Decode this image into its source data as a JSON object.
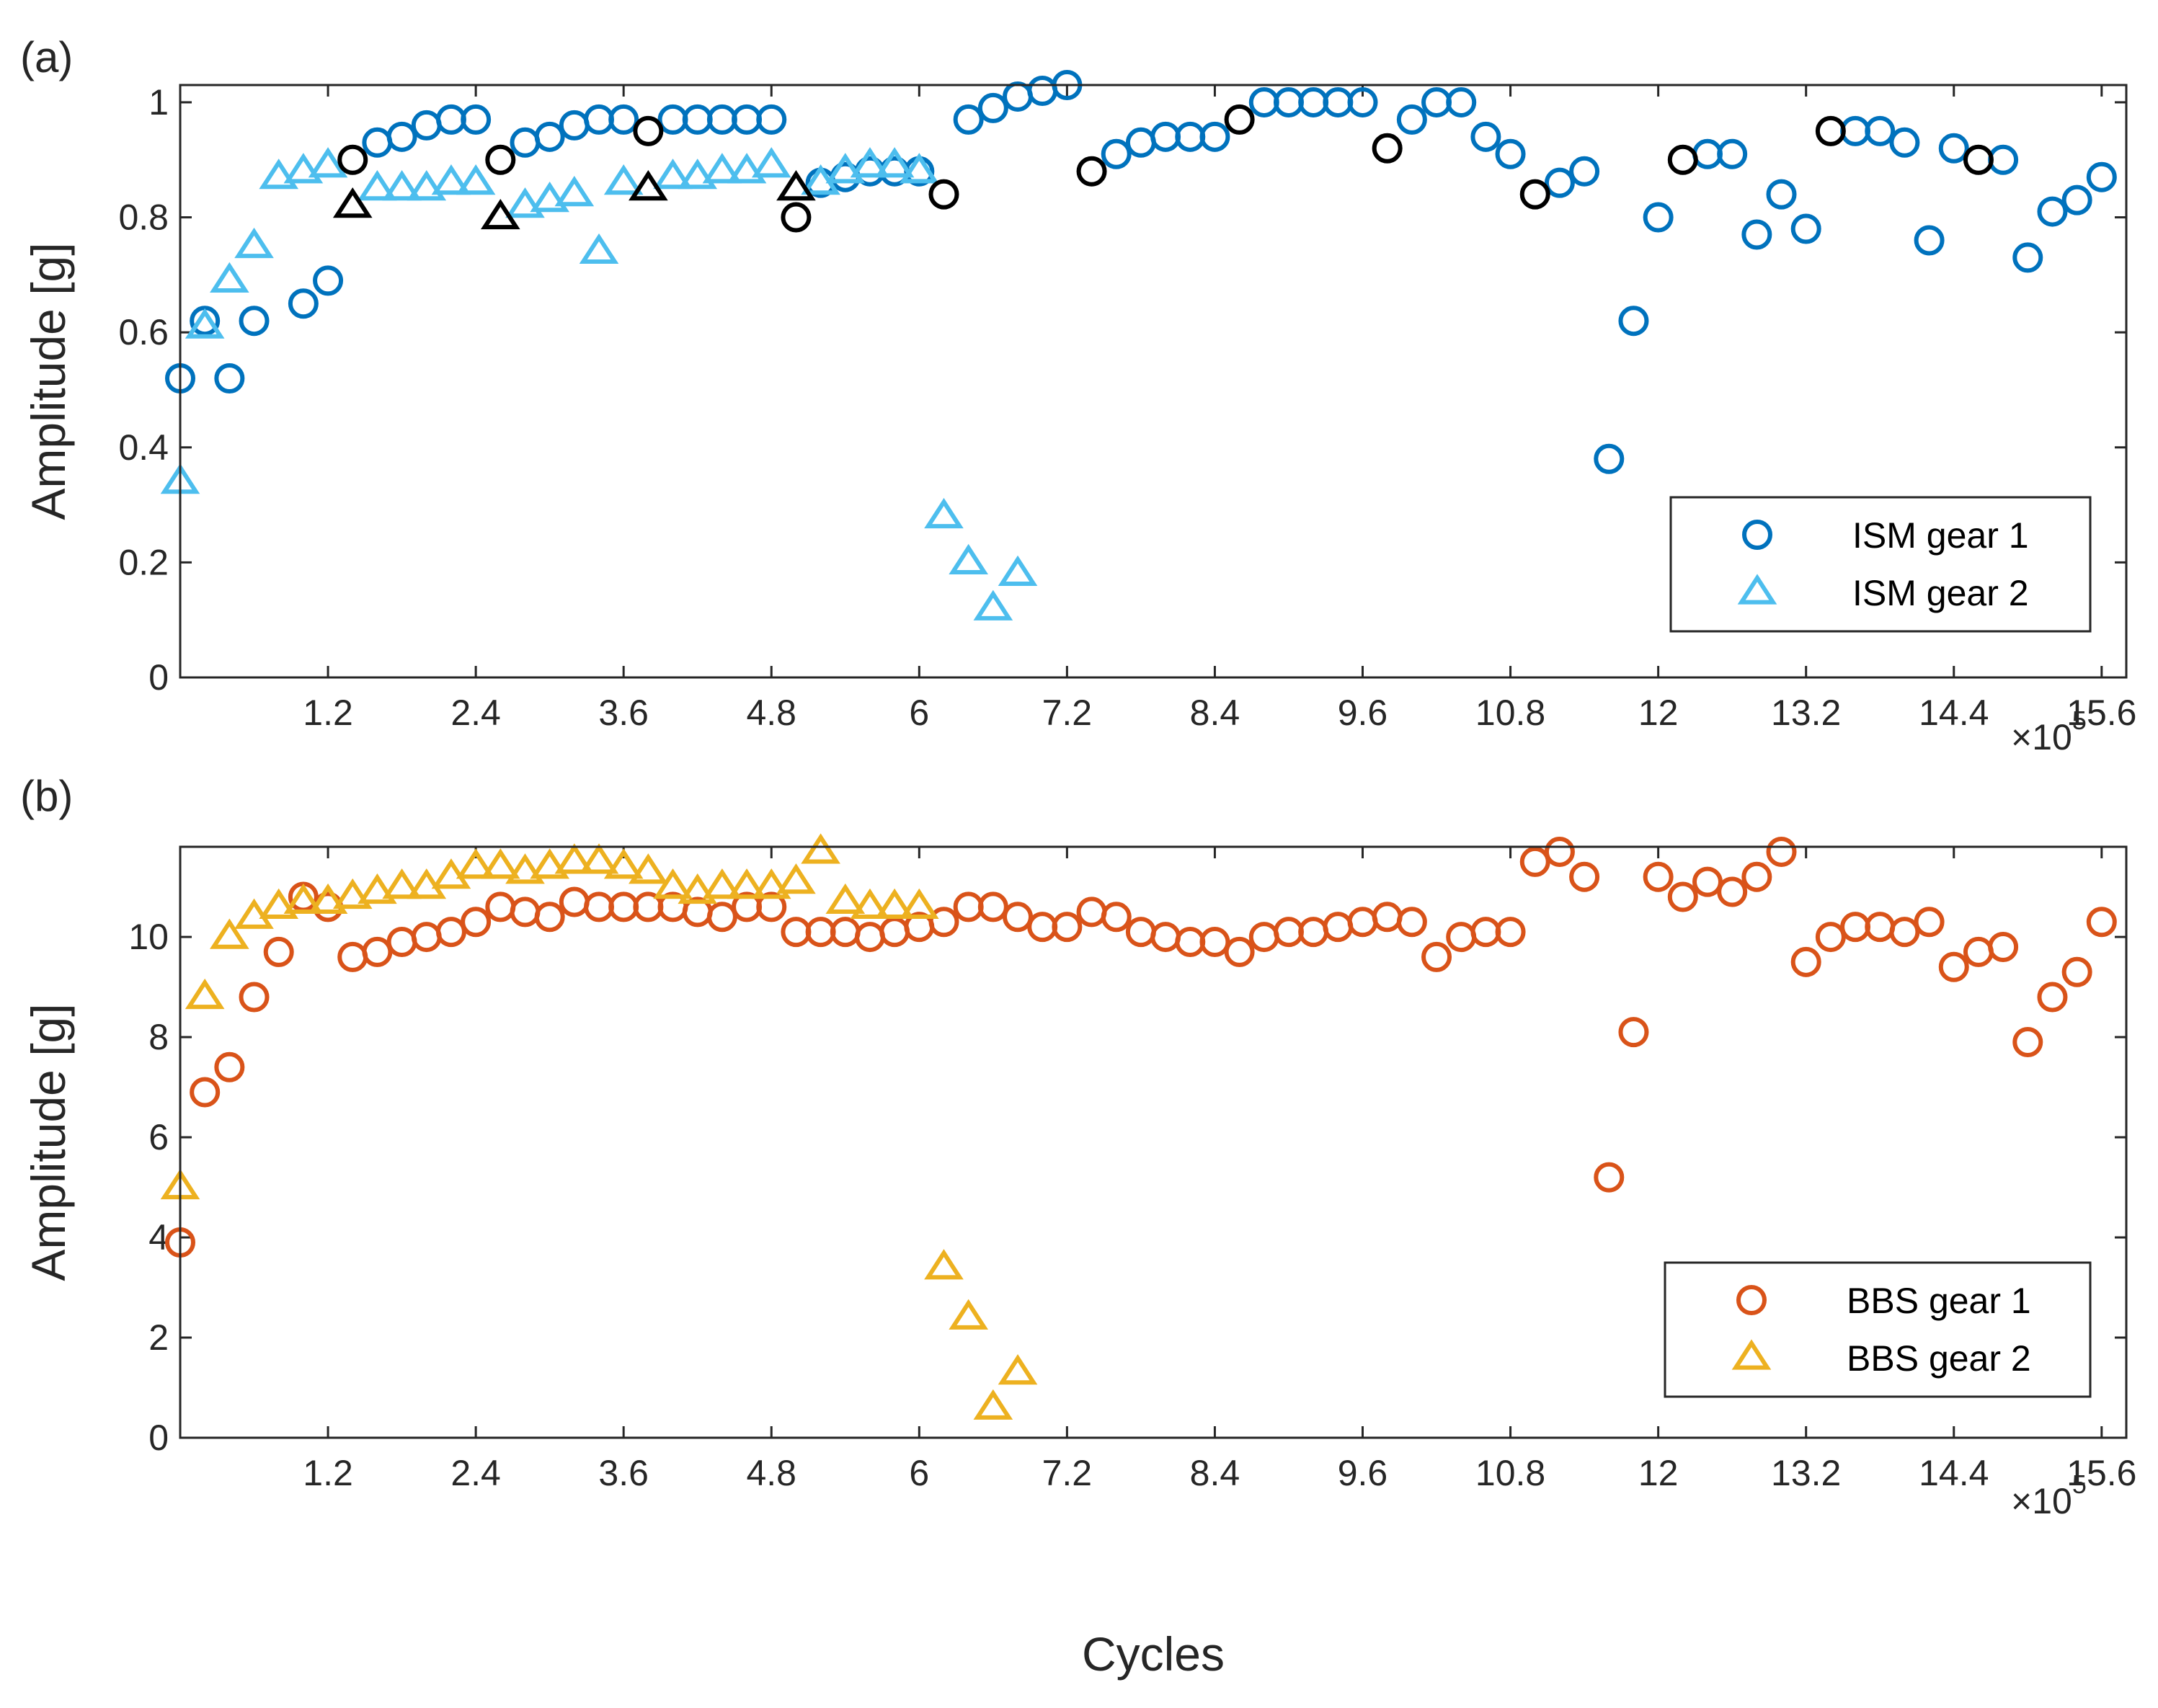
{
  "chart_data": [
    {
      "type": "scatter",
      "panel_label": "(a)",
      "ylabel": "Amplitude [g]",
      "xlabel": "",
      "xlim": [
        0,
        15.8
      ],
      "ylim": [
        0,
        1.03
      ],
      "x_multiplier_label": "×10",
      "x_multiplier_exp": "5",
      "xticks": [
        1.2,
        2.4,
        3.6,
        4.8,
        6,
        7.2,
        8.4,
        9.6,
        10.8,
        12,
        13.2,
        14.4,
        15.6
      ],
      "xtick_labels": [
        "1.2",
        "2.4",
        "3.6",
        "4.8",
        "6",
        "7.2",
        "8.4",
        "9.6",
        "10.8",
        "12",
        "13.2",
        "14.4",
        "15.6"
      ],
      "yticks": [
        0,
        0.2,
        0.4,
        0.6,
        0.8,
        1
      ],
      "ytick_labels": [
        "0",
        "0.2",
        "0.4",
        "0.6",
        "0.8",
        "1"
      ],
      "legend_position": "bottom-right",
      "series": [
        {
          "name": "ISM gear 1",
          "marker": "circle",
          "color": "#0072BD",
          "in_legend": true,
          "points": [
            [
              0,
              0.52
            ],
            [
              0.2,
              0.62
            ],
            [
              0.4,
              0.52
            ],
            [
              0.6,
              0.62
            ],
            [
              1.0,
              0.65
            ],
            [
              1.2,
              0.69
            ],
            [
              1.6,
              0.93
            ],
            [
              1.8,
              0.94
            ],
            [
              2.0,
              0.96
            ],
            [
              2.2,
              0.97
            ],
            [
              2.4,
              0.97
            ],
            [
              2.8,
              0.93
            ],
            [
              3.0,
              0.94
            ],
            [
              3.2,
              0.96
            ],
            [
              3.4,
              0.97
            ],
            [
              3.6,
              0.97
            ],
            [
              4.0,
              0.97
            ],
            [
              4.2,
              0.97
            ],
            [
              4.4,
              0.97
            ],
            [
              4.6,
              0.97
            ],
            [
              4.8,
              0.97
            ],
            [
              5.2,
              0.86
            ],
            [
              5.4,
              0.87
            ],
            [
              5.6,
              0.88
            ],
            [
              5.8,
              0.88
            ],
            [
              6.0,
              0.88
            ],
            [
              6.4,
              0.97
            ],
            [
              6.6,
              0.99
            ],
            [
              6.8,
              1.01
            ],
            [
              7.0,
              1.02
            ],
            [
              7.2,
              1.03
            ],
            [
              7.6,
              0.91
            ],
            [
              7.8,
              0.93
            ],
            [
              8.0,
              0.94
            ],
            [
              8.2,
              0.94
            ],
            [
              8.4,
              0.94
            ],
            [
              8.8,
              1.0
            ],
            [
              9.0,
              1.0
            ],
            [
              9.2,
              1.0
            ],
            [
              9.4,
              1.0
            ],
            [
              9.6,
              1.0
            ],
            [
              10.0,
              0.97
            ],
            [
              10.2,
              1.0
            ],
            [
              10.4,
              1.0
            ],
            [
              10.6,
              0.94
            ],
            [
              10.8,
              0.91
            ],
            [
              11.2,
              0.86
            ],
            [
              11.4,
              0.88
            ],
            [
              11.6,
              0.38
            ],
            [
              11.8,
              0.62
            ],
            [
              12.0,
              0.8
            ],
            [
              12.4,
              0.91
            ],
            [
              12.6,
              0.91
            ],
            [
              12.8,
              0.77
            ],
            [
              13.0,
              0.84
            ],
            [
              13.2,
              0.78
            ],
            [
              13.6,
              0.95
            ],
            [
              13.8,
              0.95
            ],
            [
              14.0,
              0.93
            ],
            [
              14.2,
              0.76
            ],
            [
              14.4,
              0.92
            ],
            [
              14.8,
              0.9
            ],
            [
              15.0,
              0.73
            ],
            [
              15.2,
              0.81
            ],
            [
              15.4,
              0.83
            ],
            [
              15.6,
              0.87
            ]
          ]
        },
        {
          "name": "ISM gear 2",
          "marker": "triangle",
          "color": "#4DBEEE",
          "in_legend": true,
          "points": [
            [
              0,
              0.34
            ],
            [
              0.2,
              0.61
            ],
            [
              0.4,
              0.69
            ],
            [
              0.6,
              0.75
            ],
            [
              0.8,
              0.87
            ],
            [
              1.0,
              0.88
            ],
            [
              1.2,
              0.89
            ],
            [
              1.6,
              0.85
            ],
            [
              1.8,
              0.85
            ],
            [
              2.0,
              0.85
            ],
            [
              2.2,
              0.86
            ],
            [
              2.4,
              0.86
            ],
            [
              2.8,
              0.82
            ],
            [
              3.0,
              0.83
            ],
            [
              3.2,
              0.84
            ],
            [
              3.4,
              0.74
            ],
            [
              3.6,
              0.86
            ],
            [
              4.0,
              0.87
            ],
            [
              4.2,
              0.87
            ],
            [
              4.4,
              0.88
            ],
            [
              4.6,
              0.88
            ],
            [
              4.8,
              0.89
            ],
            [
              5.2,
              0.86
            ],
            [
              5.4,
              0.88
            ],
            [
              5.6,
              0.89
            ],
            [
              5.8,
              0.89
            ],
            [
              6.0,
              0.88
            ],
            [
              6.2,
              0.28
            ],
            [
              6.4,
              0.2
            ],
            [
              6.6,
              0.12
            ],
            [
              6.8,
              0.18
            ]
          ]
        },
        {
          "name": "ISM gear 1 (marked)",
          "marker": "circle",
          "color": "#000000",
          "in_legend": false,
          "points": [
            [
              1.4,
              0.9
            ],
            [
              2.6,
              0.9
            ],
            [
              3.8,
              0.95
            ],
            [
              5.0,
              0.8
            ],
            [
              6.2,
              0.84
            ],
            [
              7.4,
              0.88
            ],
            [
              8.6,
              0.97
            ],
            [
              9.8,
              0.92
            ],
            [
              11.0,
              0.84
            ],
            [
              12.2,
              0.9
            ],
            [
              13.4,
              0.95
            ],
            [
              14.6,
              0.9
            ]
          ]
        },
        {
          "name": "ISM gear 2 (marked)",
          "marker": "triangle",
          "color": "#000000",
          "in_legend": false,
          "points": [
            [
              1.4,
              0.82
            ],
            [
              2.6,
              0.8
            ],
            [
              3.8,
              0.85
            ],
            [
              5.0,
              0.85
            ]
          ]
        }
      ]
    },
    {
      "type": "scatter",
      "panel_label": "(b)",
      "ylabel": "Amplitude [g]",
      "xlabel": "Cycles",
      "xlim": [
        0,
        15.8
      ],
      "ylim": [
        0,
        11.8
      ],
      "x_multiplier_label": "×10",
      "x_multiplier_exp": "5",
      "xticks": [
        1.2,
        2.4,
        3.6,
        4.8,
        6,
        7.2,
        8.4,
        9.6,
        10.8,
        12,
        13.2,
        14.4,
        15.6
      ],
      "xtick_labels": [
        "1.2",
        "2.4",
        "3.6",
        "4.8",
        "6",
        "7.2",
        "8.4",
        "9.6",
        "10.8",
        "12",
        "13.2",
        "14.4",
        "15.6"
      ],
      "yticks": [
        0,
        2,
        4,
        6,
        8,
        10
      ],
      "ytick_labels": [
        "0",
        "2",
        "4",
        "6",
        "8",
        "10"
      ],
      "legend_position": "bottom-right",
      "series": [
        {
          "name": "BBS gear 1",
          "marker": "circle",
          "color": "#D95319",
          "in_legend": true,
          "points": [
            [
              0,
              3.9
            ],
            [
              0.2,
              6.9
            ],
            [
              0.4,
              7.4
            ],
            [
              0.6,
              8.8
            ],
            [
              0.8,
              9.7
            ],
            [
              1.0,
              10.8
            ],
            [
              1.2,
              10.6
            ],
            [
              1.4,
              9.6
            ],
            [
              1.6,
              9.7
            ],
            [
              1.8,
              9.9
            ],
            [
              2.0,
              10.0
            ],
            [
              2.2,
              10.1
            ],
            [
              2.4,
              10.3
            ],
            [
              2.6,
              10.6
            ],
            [
              2.8,
              10.5
            ],
            [
              3.0,
              10.4
            ],
            [
              3.2,
              10.7
            ],
            [
              3.4,
              10.6
            ],
            [
              3.6,
              10.6
            ],
            [
              3.8,
              10.6
            ],
            [
              4.0,
              10.6
            ],
            [
              4.2,
              10.5
            ],
            [
              4.4,
              10.4
            ],
            [
              4.6,
              10.6
            ],
            [
              4.8,
              10.6
            ],
            [
              5.0,
              10.1
            ],
            [
              5.2,
              10.1
            ],
            [
              5.4,
              10.1
            ],
            [
              5.6,
              10.0
            ],
            [
              5.8,
              10.1
            ],
            [
              6.0,
              10.2
            ],
            [
              6.2,
              10.3
            ],
            [
              6.4,
              10.6
            ],
            [
              6.6,
              10.6
            ],
            [
              6.8,
              10.4
            ],
            [
              7.0,
              10.2
            ],
            [
              7.2,
              10.2
            ],
            [
              7.4,
              10.5
            ],
            [
              7.6,
              10.4
            ],
            [
              7.8,
              10.1
            ],
            [
              8.0,
              10.0
            ],
            [
              8.2,
              9.9
            ],
            [
              8.4,
              9.9
            ],
            [
              8.6,
              9.7
            ],
            [
              8.8,
              10.0
            ],
            [
              9.0,
              10.1
            ],
            [
              9.2,
              10.1
            ],
            [
              9.4,
              10.2
            ],
            [
              9.6,
              10.3
            ],
            [
              9.8,
              10.4
            ],
            [
              10.0,
              10.3
            ],
            [
              10.2,
              9.6
            ],
            [
              10.4,
              10.0
            ],
            [
              10.6,
              10.1
            ],
            [
              10.8,
              10.1
            ],
            [
              11.0,
              11.5
            ],
            [
              11.2,
              11.7
            ],
            [
              11.4,
              11.2
            ],
            [
              11.6,
              5.2
            ],
            [
              11.8,
              8.1
            ],
            [
              12.0,
              11.2
            ],
            [
              12.2,
              10.8
            ],
            [
              12.4,
              11.1
            ],
            [
              12.6,
              10.9
            ],
            [
              12.8,
              11.2
            ],
            [
              13.0,
              11.7
            ],
            [
              13.2,
              9.5
            ],
            [
              13.4,
              10.0
            ],
            [
              13.6,
              10.2
            ],
            [
              13.8,
              10.2
            ],
            [
              14.0,
              10.1
            ],
            [
              14.2,
              10.3
            ],
            [
              14.4,
              9.4
            ],
            [
              14.6,
              9.7
            ],
            [
              14.8,
              9.8
            ],
            [
              15.0,
              7.9
            ],
            [
              15.2,
              8.8
            ],
            [
              15.4,
              9.3
            ],
            [
              15.6,
              10.3
            ]
          ]
        },
        {
          "name": "BBS gear 2",
          "marker": "triangle",
          "color": "#EDB120",
          "in_legend": true,
          "points": [
            [
              0,
              5.0
            ],
            [
              0.2,
              8.8
            ],
            [
              0.4,
              10.0
            ],
            [
              0.6,
              10.4
            ],
            [
              0.8,
              10.6
            ],
            [
              1.0,
              10.7
            ],
            [
              1.2,
              10.7
            ],
            [
              1.4,
              10.8
            ],
            [
              1.6,
              10.9
            ],
            [
              1.8,
              11.0
            ],
            [
              2.0,
              11.0
            ],
            [
              2.2,
              11.2
            ],
            [
              2.4,
              11.4
            ],
            [
              2.6,
              11.4
            ],
            [
              2.8,
              11.3
            ],
            [
              3.0,
              11.4
            ],
            [
              3.2,
              11.5
            ],
            [
              3.4,
              11.5
            ],
            [
              3.6,
              11.4
            ],
            [
              3.8,
              11.3
            ],
            [
              4.0,
              11.0
            ],
            [
              4.2,
              10.9
            ],
            [
              4.4,
              11.0
            ],
            [
              4.6,
              11.0
            ],
            [
              4.8,
              11.0
            ],
            [
              5.0,
              11.1
            ],
            [
              5.2,
              11.7
            ],
            [
              5.4,
              10.7
            ],
            [
              5.6,
              10.6
            ],
            [
              5.8,
              10.6
            ],
            [
              6.0,
              10.6
            ],
            [
              6.2,
              3.4
            ],
            [
              6.4,
              2.4
            ],
            [
              6.6,
              0.6
            ],
            [
              6.8,
              1.3
            ]
          ]
        }
      ]
    }
  ]
}
